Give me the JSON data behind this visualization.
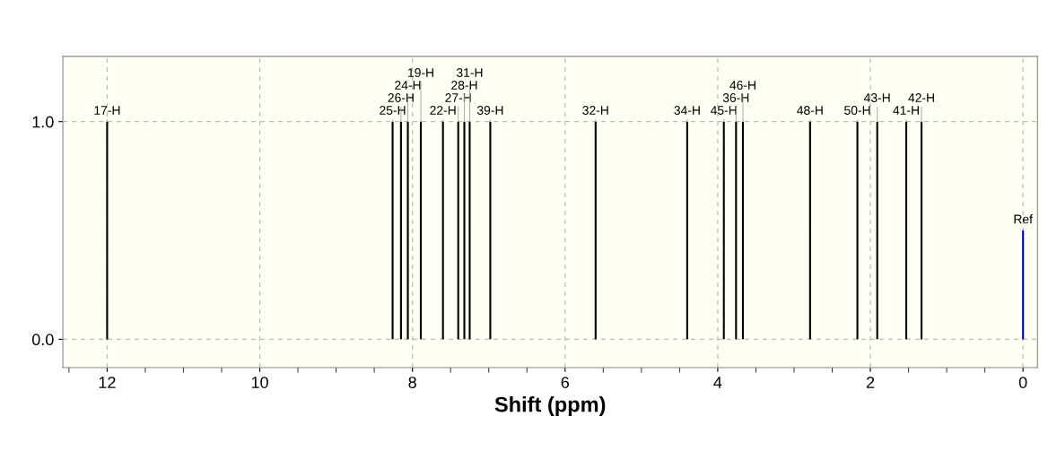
{
  "chart_data": {
    "type": "bar",
    "xlabel": "Shift (ppm)",
    "xlim": [
      12.58,
      -0.19
    ],
    "ylim": [
      -0.13,
      1.3
    ],
    "xticks": [
      12,
      10,
      8,
      6,
      4,
      2,
      0
    ],
    "yticks": [
      {
        "value": 0,
        "label": "0.0"
      },
      {
        "value": 1,
        "label": "1.0"
      }
    ],
    "grid": true,
    "series": [
      {
        "color": "#000000",
        "x": [
          12.0,
          8.26,
          8.15,
          8.06,
          7.89,
          7.6,
          7.4,
          7.32,
          7.25,
          6.98,
          5.6,
          4.4,
          3.92,
          3.76,
          3.67,
          2.79,
          2.17,
          1.91,
          1.53,
          1.33
        ],
        "values": [
          1,
          1,
          1,
          1,
          1,
          1,
          1,
          1,
          1,
          1,
          1,
          1,
          1,
          1,
          1,
          1,
          1,
          1,
          1,
          1
        ]
      },
      {
        "color": "#0000ff",
        "x": [
          0
        ],
        "values": [
          0.5
        ]
      }
    ],
    "annotations": [
      {
        "text": "17-H",
        "x": 12.0,
        "y": 1
      },
      {
        "text": "25-H",
        "x": 8.26,
        "y": 1
      },
      {
        "text": "26-H",
        "x": 8.15,
        "y": 1
      },
      {
        "text": "24-H",
        "x": 8.06,
        "y": 1
      },
      {
        "text": "19-H",
        "x": 7.89,
        "y": 1
      },
      {
        "text": "22-H",
        "x": 7.6,
        "y": 1
      },
      {
        "text": "27-H",
        "x": 7.4,
        "y": 1
      },
      {
        "text": "28-H",
        "x": 7.32,
        "y": 1
      },
      {
        "text": "31-H",
        "x": 7.25,
        "y": 1
      },
      {
        "text": "39-H",
        "x": 6.98,
        "y": 1
      },
      {
        "text": "32-H",
        "x": 5.6,
        "y": 1
      },
      {
        "text": "34-H",
        "x": 4.4,
        "y": 1
      },
      {
        "text": "45-H",
        "x": 3.92,
        "y": 1
      },
      {
        "text": "36-H",
        "x": 3.76,
        "y": 1
      },
      {
        "text": "46-H",
        "x": 3.67,
        "y": 1
      },
      {
        "text": "48-H",
        "x": 2.79,
        "y": 1
      },
      {
        "text": "50-H",
        "x": 2.17,
        "y": 1
      },
      {
        "text": "43-H",
        "x": 1.91,
        "y": 1
      },
      {
        "text": "41-H",
        "x": 1.53,
        "y": 1
      },
      {
        "text": "42-H",
        "x": 1.33,
        "y": 1
      },
      {
        "text": "Ref",
        "x": 0,
        "y": 0.5
      }
    ]
  }
}
